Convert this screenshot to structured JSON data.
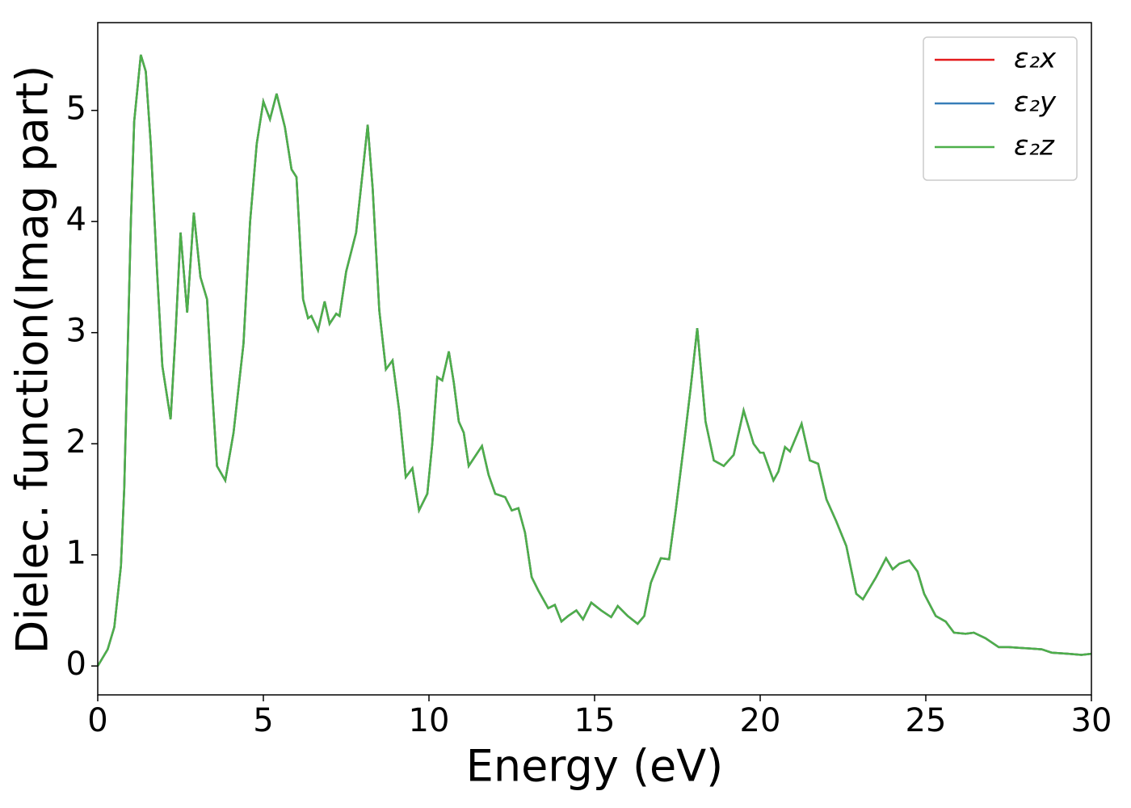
{
  "chart_data": {
    "type": "line",
    "xlabel": "Energy (eV)",
    "ylabel": "Dielec. function(Imag part)",
    "xlim": [
      0,
      30
    ],
    "xticks": [
      0,
      5,
      10,
      15,
      20,
      25,
      30
    ],
    "ylim": [
      -0.26,
      5.79
    ],
    "yticks": [
      0,
      1,
      2,
      3,
      4,
      5
    ],
    "legend": "upper right",
    "x": [
      0,
      0.3,
      0.5,
      0.7,
      0.8,
      0.9,
      1.0,
      1.1,
      1.3,
      1.45,
      1.6,
      1.8,
      1.95,
      2.2,
      2.35,
      2.5,
      2.7,
      2.9,
      3.1,
      3.3,
      3.45,
      3.6,
      3.85,
      4.1,
      4.4,
      4.6,
      4.8,
      5.0,
      5.2,
      5.4,
      5.65,
      5.85,
      6.0,
      6.2,
      6.35,
      6.45,
      6.65,
      6.85,
      7.0,
      7.2,
      7.3,
      7.5,
      7.8,
      8.0,
      8.15,
      8.3,
      8.5,
      8.7,
      8.9,
      9.1,
      9.3,
      9.5,
      9.7,
      9.95,
      10.1,
      10.25,
      10.4,
      10.6,
      10.75,
      10.9,
      11.05,
      11.2,
      11.6,
      11.8,
      12.0,
      12.3,
      12.5,
      12.7,
      12.9,
      13.1,
      13.3,
      13.6,
      13.8,
      14.0,
      14.2,
      14.45,
      14.65,
      14.9,
      15.2,
      15.5,
      15.7,
      16.0,
      16.3,
      16.5,
      16.7,
      17.0,
      17.25,
      17.45,
      17.7,
      17.9,
      18.1,
      18.35,
      18.6,
      18.9,
      19.2,
      19.5,
      19.8,
      20.0,
      20.1,
      20.4,
      20.55,
      20.75,
      20.9,
      21.25,
      21.5,
      21.75,
      22.0,
      22.3,
      22.6,
      22.9,
      23.1,
      23.5,
      23.8,
      24.0,
      24.2,
      24.5,
      24.75,
      24.95,
      25.3,
      25.6,
      25.85,
      26.2,
      26.45,
      26.8,
      27.2,
      27.5,
      28.0,
      28.5,
      28.8,
      29.3,
      29.7,
      30
    ],
    "series": [
      {
        "name": "ε₂x",
        "color": "#e41a1c",
        "values": [
          0,
          0.15,
          0.35,
          0.9,
          1.6,
          2.8,
          4.0,
          4.9,
          5.5,
          5.35,
          4.7,
          3.5,
          2.7,
          2.22,
          3.0,
          3.9,
          3.18,
          4.08,
          3.5,
          3.3,
          2.5,
          1.8,
          1.67,
          2.1,
          2.9,
          4.0,
          4.7,
          5.08,
          4.92,
          5.15,
          4.85,
          4.47,
          4.4,
          3.3,
          3.13,
          3.15,
          3.02,
          3.28,
          3.08,
          3.17,
          3.15,
          3.55,
          3.9,
          4.45,
          4.87,
          4.3,
          3.2,
          2.67,
          2.75,
          2.3,
          1.7,
          1.78,
          1.4,
          1.55,
          2.0,
          2.6,
          2.57,
          2.83,
          2.55,
          2.2,
          2.1,
          1.8,
          1.98,
          1.72,
          1.55,
          1.52,
          1.4,
          1.42,
          1.2,
          0.8,
          0.68,
          0.52,
          0.55,
          0.4,
          0.45,
          0.5,
          0.42,
          0.57,
          0.5,
          0.44,
          0.54,
          0.45,
          0.38,
          0.45,
          0.75,
          0.97,
          0.96,
          1.4,
          2.0,
          2.5,
          3.04,
          2.2,
          1.85,
          1.8,
          1.9,
          2.3,
          2.0,
          1.92,
          1.92,
          1.67,
          1.75,
          1.97,
          1.93,
          2.18,
          1.85,
          1.82,
          1.5,
          1.3,
          1.08,
          0.65,
          0.6,
          0.8,
          0.97,
          0.87,
          0.92,
          0.95,
          0.85,
          0.65,
          0.45,
          0.4,
          0.3,
          0.29,
          0.3,
          0.25,
          0.17,
          0.17,
          0.16,
          0.15,
          0.12,
          0.11,
          0.1,
          0.11
        ]
      },
      {
        "name": "ε₂y",
        "color": "#377eb8",
        "values": [
          0,
          0.15,
          0.35,
          0.9,
          1.6,
          2.8,
          4.0,
          4.9,
          5.5,
          5.35,
          4.7,
          3.5,
          2.7,
          2.22,
          3.0,
          3.9,
          3.18,
          4.08,
          3.5,
          3.3,
          2.5,
          1.8,
          1.67,
          2.1,
          2.9,
          4.0,
          4.7,
          5.08,
          4.92,
          5.15,
          4.85,
          4.47,
          4.4,
          3.3,
          3.13,
          3.15,
          3.02,
          3.28,
          3.08,
          3.17,
          3.15,
          3.55,
          3.9,
          4.45,
          4.87,
          4.3,
          3.2,
          2.67,
          2.75,
          2.3,
          1.7,
          1.78,
          1.4,
          1.55,
          2.0,
          2.6,
          2.57,
          2.83,
          2.55,
          2.2,
          2.1,
          1.8,
          1.98,
          1.72,
          1.55,
          1.52,
          1.4,
          1.42,
          1.2,
          0.8,
          0.68,
          0.52,
          0.55,
          0.4,
          0.45,
          0.5,
          0.42,
          0.57,
          0.5,
          0.44,
          0.54,
          0.45,
          0.38,
          0.45,
          0.75,
          0.97,
          0.96,
          1.4,
          2.0,
          2.5,
          3.04,
          2.2,
          1.85,
          1.8,
          1.9,
          2.3,
          2.0,
          1.92,
          1.92,
          1.67,
          1.75,
          1.97,
          1.93,
          2.18,
          1.85,
          1.82,
          1.5,
          1.3,
          1.08,
          0.65,
          0.6,
          0.8,
          0.97,
          0.87,
          0.92,
          0.95,
          0.85,
          0.65,
          0.45,
          0.4,
          0.3,
          0.29,
          0.3,
          0.25,
          0.17,
          0.17,
          0.16,
          0.15,
          0.12,
          0.11,
          0.1,
          0.11
        ]
      },
      {
        "name": "ε₂z",
        "color": "#4daf4a",
        "values": [
          0,
          0.15,
          0.35,
          0.9,
          1.6,
          2.8,
          4.0,
          4.9,
          5.5,
          5.35,
          4.7,
          3.5,
          2.7,
          2.22,
          3.0,
          3.9,
          3.18,
          4.08,
          3.5,
          3.3,
          2.5,
          1.8,
          1.67,
          2.1,
          2.9,
          4.0,
          4.7,
          5.08,
          4.92,
          5.15,
          4.85,
          4.47,
          4.4,
          3.3,
          3.13,
          3.15,
          3.02,
          3.28,
          3.08,
          3.17,
          3.15,
          3.55,
          3.9,
          4.45,
          4.87,
          4.3,
          3.2,
          2.67,
          2.75,
          2.3,
          1.7,
          1.78,
          1.4,
          1.55,
          2.0,
          2.6,
          2.57,
          2.83,
          2.55,
          2.2,
          2.1,
          1.8,
          1.98,
          1.72,
          1.55,
          1.52,
          1.4,
          1.42,
          1.2,
          0.8,
          0.68,
          0.52,
          0.55,
          0.4,
          0.45,
          0.5,
          0.42,
          0.57,
          0.5,
          0.44,
          0.54,
          0.45,
          0.38,
          0.45,
          0.75,
          0.97,
          0.96,
          1.4,
          2.0,
          2.5,
          3.04,
          2.2,
          1.85,
          1.8,
          1.9,
          2.3,
          2.0,
          1.92,
          1.92,
          1.67,
          1.75,
          1.97,
          1.93,
          2.18,
          1.85,
          1.82,
          1.5,
          1.3,
          1.08,
          0.65,
          0.6,
          0.8,
          0.97,
          0.87,
          0.92,
          0.95,
          0.85,
          0.65,
          0.45,
          0.4,
          0.3,
          0.29,
          0.3,
          0.25,
          0.17,
          0.17,
          0.16,
          0.15,
          0.12,
          0.11,
          0.1,
          0.11
        ]
      }
    ]
  }
}
